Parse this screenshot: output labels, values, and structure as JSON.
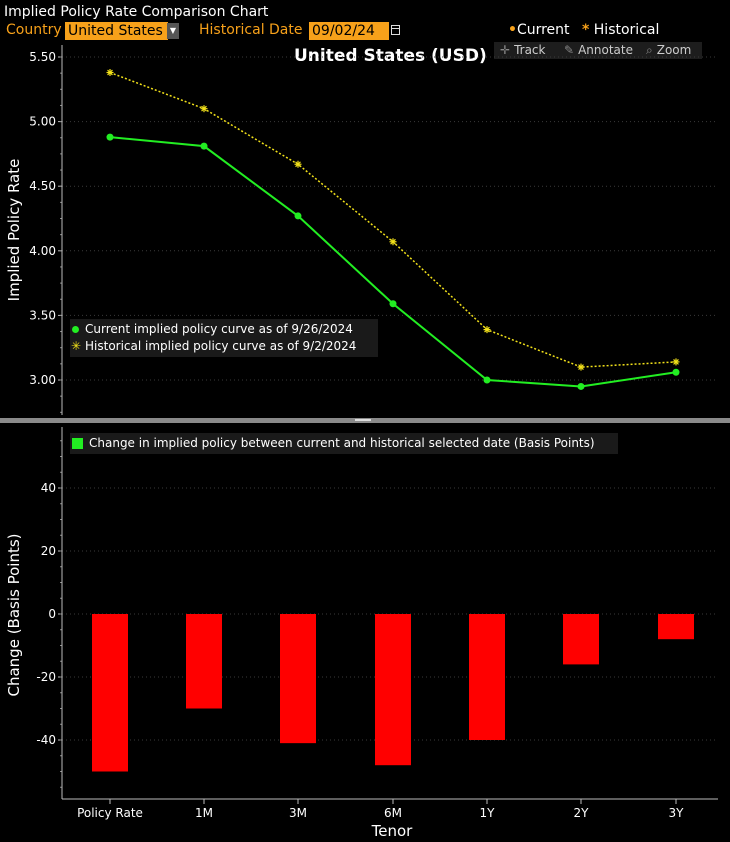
{
  "app_title": "Implied Policy Rate Comparison Chart",
  "controls": {
    "country_label": "Country",
    "country_value": "United States",
    "historical_label": "Historical Date",
    "historical_value": "09/02/24"
  },
  "top_legend": {
    "current": "Current",
    "historical": "Historical"
  },
  "toolbar": {
    "track": "Track",
    "annotate": "Annotate",
    "zoom": "Zoom"
  },
  "colors": {
    "current": "#22ee22",
    "historical": "#f2e11a",
    "bars": "#ff0000",
    "accent": "#f7a11a"
  },
  "chart_data": [
    {
      "type": "line",
      "title": "United States (USD)",
      "ylabel": "Implied Policy Rate",
      "ylim": [
        2.75,
        5.62
      ],
      "yticks": [
        "5.50",
        "5.00",
        "4.50",
        "4.00",
        "3.50",
        "3.00"
      ],
      "categories": [
        "Policy Rate",
        "1M",
        "3M",
        "6M",
        "1Y",
        "2Y",
        "3Y"
      ],
      "series": [
        {
          "name": "Current implied policy curve as of 9/26/2024",
          "values": [
            4.88,
            4.81,
            4.27,
            3.59,
            3.0,
            2.95,
            3.06
          ]
        },
        {
          "name": "Historical implied policy curve as of 9/2/2024",
          "values": [
            5.38,
            5.1,
            4.67,
            4.07,
            3.39,
            3.1,
            3.14
          ]
        }
      ],
      "legend": "bottom-left"
    },
    {
      "type": "bar",
      "ylabel": "Change (Basis Points)",
      "xlabel": "Tenor",
      "ylim": [
        -60,
        60
      ],
      "yticks": [
        "40",
        "20",
        "0",
        "-20",
        "-40"
      ],
      "categories": [
        "Policy Rate",
        "1M",
        "3M",
        "6M",
        "1Y",
        "2Y",
        "3Y"
      ],
      "series": [
        {
          "name": "Change in implied policy between current and historical selected date (Basis Points)",
          "values": [
            -50,
            -30,
            -41,
            -48,
            -40,
            -16,
            -8
          ]
        }
      ],
      "legend": "top-left"
    }
  ]
}
